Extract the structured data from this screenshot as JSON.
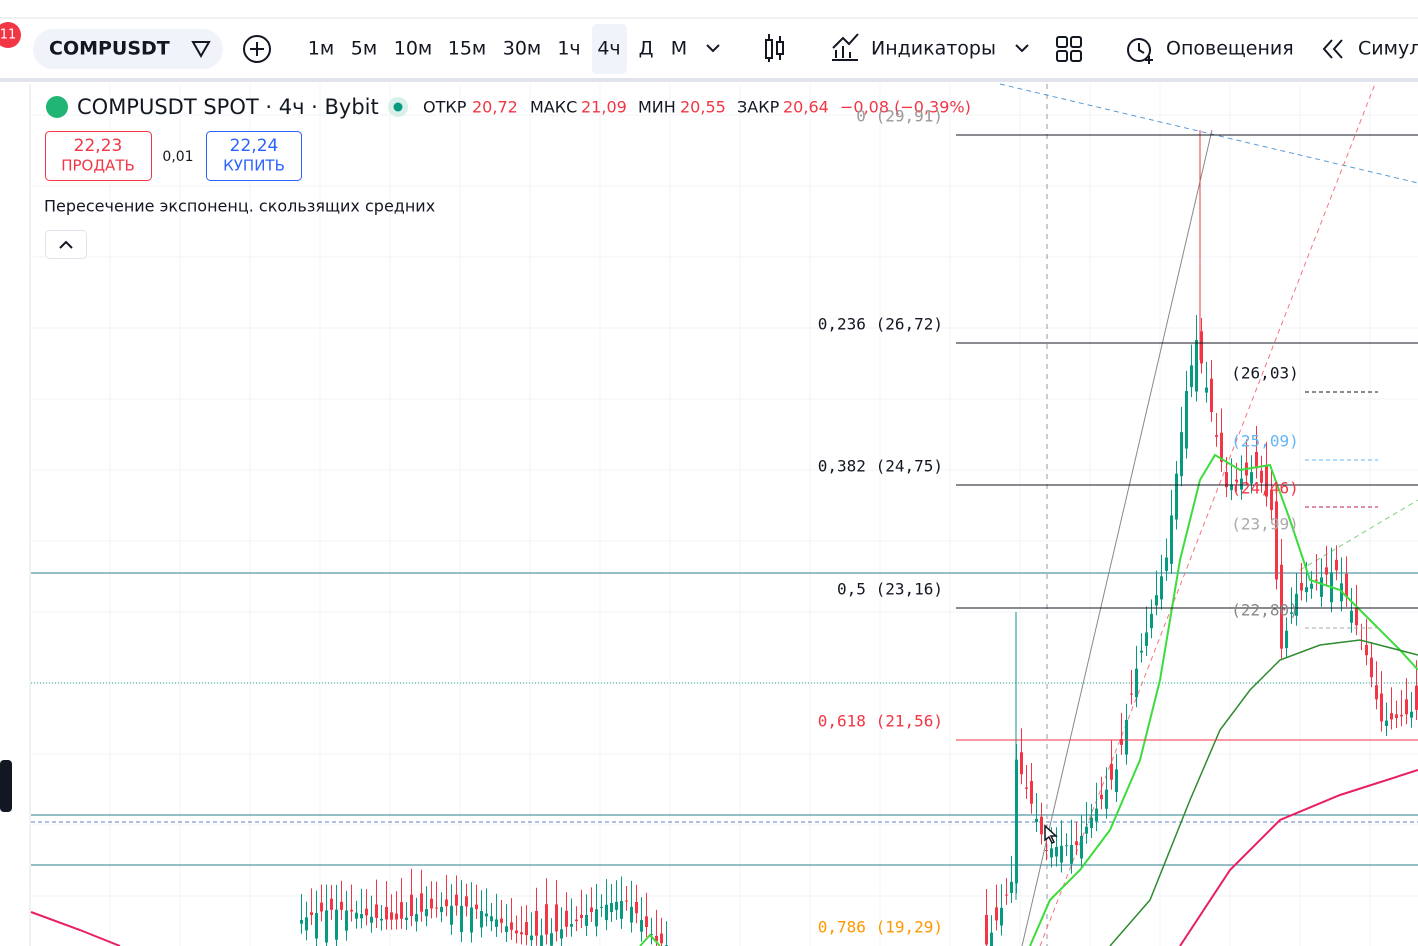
{
  "toolbar": {
    "notification_badge": "11",
    "symbol": "COMPUSDT",
    "timeframes": [
      "1м",
      "5м",
      "10м",
      "15м",
      "30м",
      "1ч",
      "4ч",
      "Д",
      "М"
    ],
    "indicators": "Индикаторы",
    "alerts": "Оповещения",
    "replay": "Симул"
  },
  "legend": {
    "title": "COMPUSDT SPOT · 4ч · Bybit",
    "open_label": "ОТКР",
    "open": "20,72",
    "high_label": "МАКС",
    "high": "21,09",
    "low_label": "МИН",
    "low": "20,55",
    "close_label": "ЗАКР",
    "close": "20,64",
    "change": "−0,08 (−0,39%)"
  },
  "trade": {
    "sell_price": "22,23",
    "sell_label": "ПРОДАТЬ",
    "spread": "0,01",
    "buy_price": "22,24",
    "buy_label": "КУПИТЬ"
  },
  "indicator": {
    "name": "Пересечение экспоненц. скользящих средних"
  },
  "fib_levels": [
    "0 (29,91)",
    "0,236 (26,72)",
    "0,382 (24,75)",
    "0,5 (23,16)",
    "0,618 (21,56)",
    "0,786 (19,29)"
  ],
  "price_labels": [
    "(26,03)",
    "(25,09)",
    "(24,46)",
    "(23,99)",
    "(22,80)"
  ]
}
